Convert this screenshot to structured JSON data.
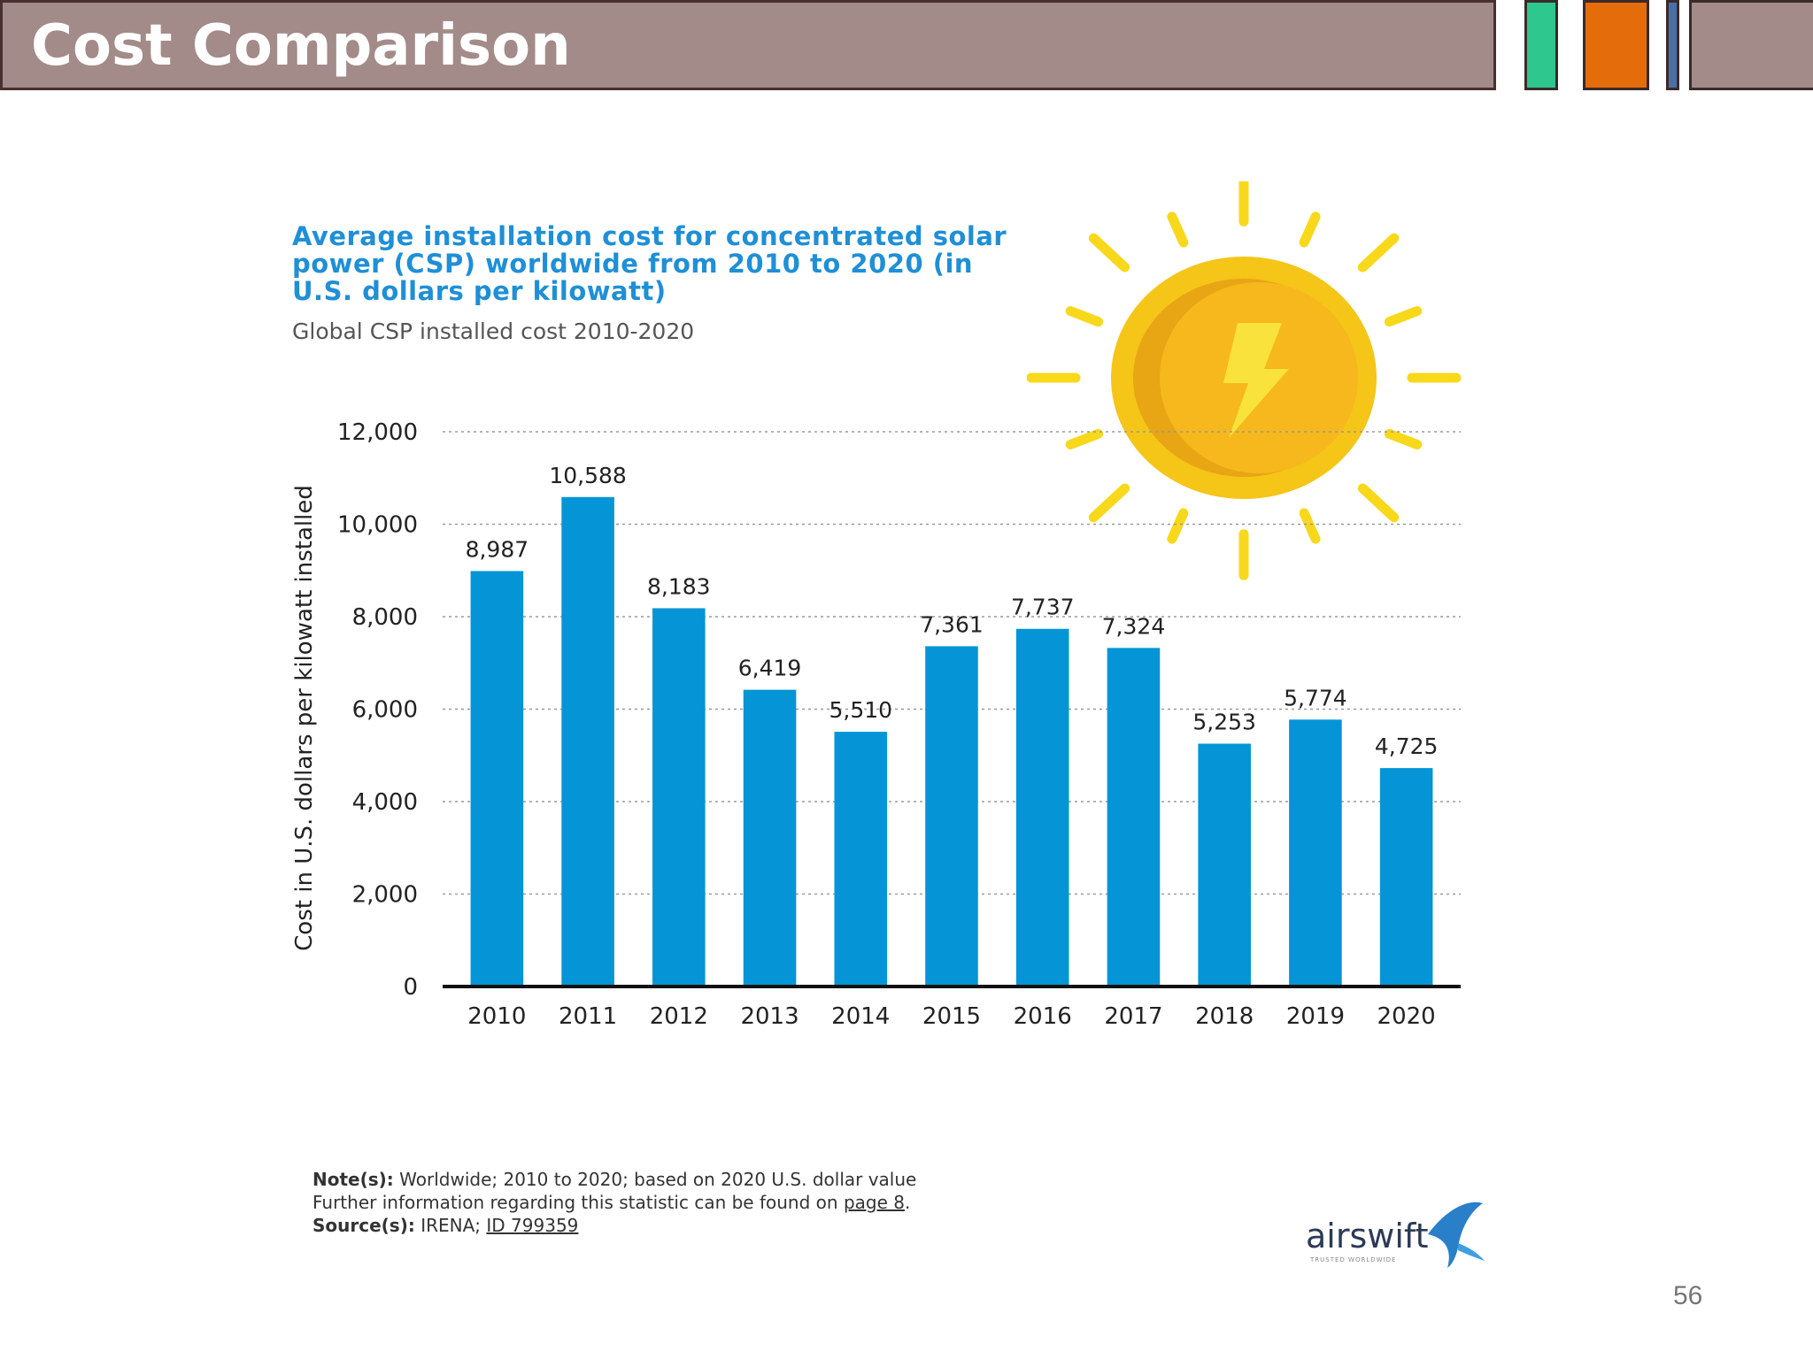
{
  "slide": {
    "title": "Cost Comparison",
    "page_number": "56"
  },
  "chart_header": {
    "title": "Average installation cost for concentrated solar power (CSP) worldwide from 2010 to 2020 (in U.S. dollars per kilowatt)",
    "subtitle": "Global CSP installed cost 2010-2020"
  },
  "notes": {
    "note_label": "Note(s):",
    "note_text": "Worldwide; 2010 to 2020; based on 2020 U.S. dollar value",
    "further_text": "Further information regarding this statistic can be found on",
    "further_link": "page 8",
    "further_end": ".",
    "source_label": "Source(s):",
    "source_text": "IRENA;",
    "source_link": "ID 799359"
  },
  "logo": {
    "name": "airswift",
    "tagline": "TRUSTED WORLDWIDE"
  },
  "colors": {
    "bar": "#0595d6",
    "title_bar": "#a38b89",
    "chart_title": "#1f8fd6",
    "sun": "#f5c518"
  },
  "icons": [
    "sun-icon",
    "lightning-bolt-icon",
    "airswift-bird-icon"
  ],
  "chart_data": {
    "type": "bar",
    "title": "Average installation cost for concentrated solar power (CSP) worldwide from 2010 to 2020 (in U.S. dollars per kilowatt)",
    "subtitle": "Global CSP installed cost 2010-2020",
    "xlabel": "",
    "ylabel": "Cost in U.S. dollars per kilowatt installed",
    "categories": [
      "2010",
      "2011",
      "2012",
      "2013",
      "2014",
      "2015",
      "2016",
      "2017",
      "2018",
      "2019",
      "2020"
    ],
    "values": [
      8987,
      10588,
      8183,
      6419,
      5510,
      7361,
      7737,
      7324,
      5253,
      5774,
      4725
    ],
    "value_labels": [
      "8,987",
      "10,588",
      "8,183",
      "6,419",
      "5,510",
      "7,361",
      "7,737",
      "7,324",
      "5,253",
      "5,774",
      "4,725"
    ],
    "ylim": [
      0,
      12000
    ],
    "yticks": [
      0,
      2000,
      4000,
      6000,
      8000,
      10000,
      12000
    ],
    "ytick_labels": [
      "0",
      "2,000",
      "4,000",
      "6,000",
      "8,000",
      "10,000",
      "12,000"
    ],
    "grid": true,
    "grid_style": "dotted"
  }
}
